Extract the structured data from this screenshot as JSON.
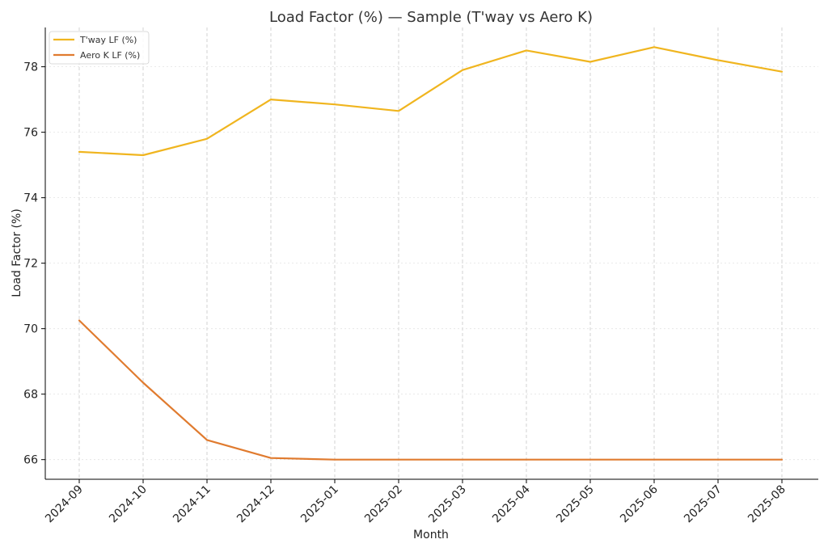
{
  "chart_data": {
    "type": "line",
    "title": "Load Factor (%) — Sample (T'way vs Aero K)",
    "xlabel": "Month",
    "ylabel": "Load Factor (%)",
    "categories": [
      "2024-09",
      "2024-10",
      "2024-11",
      "2024-12",
      "2025-01",
      "2025-02",
      "2025-03",
      "2025-04",
      "2025-05",
      "2025-06",
      "2025-07",
      "2025-08"
    ],
    "ylim": [
      65.4,
      79.2
    ],
    "yticks": [
      66,
      68,
      70,
      72,
      74,
      76,
      78
    ],
    "grid": true,
    "legend_position": "top-left",
    "series": [
      {
        "name": "T'way LF (%)",
        "color": "#f0b51f",
        "values": [
          75.4,
          75.3,
          75.8,
          77.0,
          76.85,
          76.65,
          77.9,
          78.5,
          78.15,
          78.6,
          78.2,
          77.85
        ]
      },
      {
        "name": "Aero K LF (%)",
        "color": "#e07b2f",
        "values": [
          70.25,
          68.35,
          66.6,
          66.05,
          66.0,
          66.0,
          66.0,
          66.0,
          66.0,
          66.0,
          66.0,
          66.0
        ]
      }
    ]
  }
}
